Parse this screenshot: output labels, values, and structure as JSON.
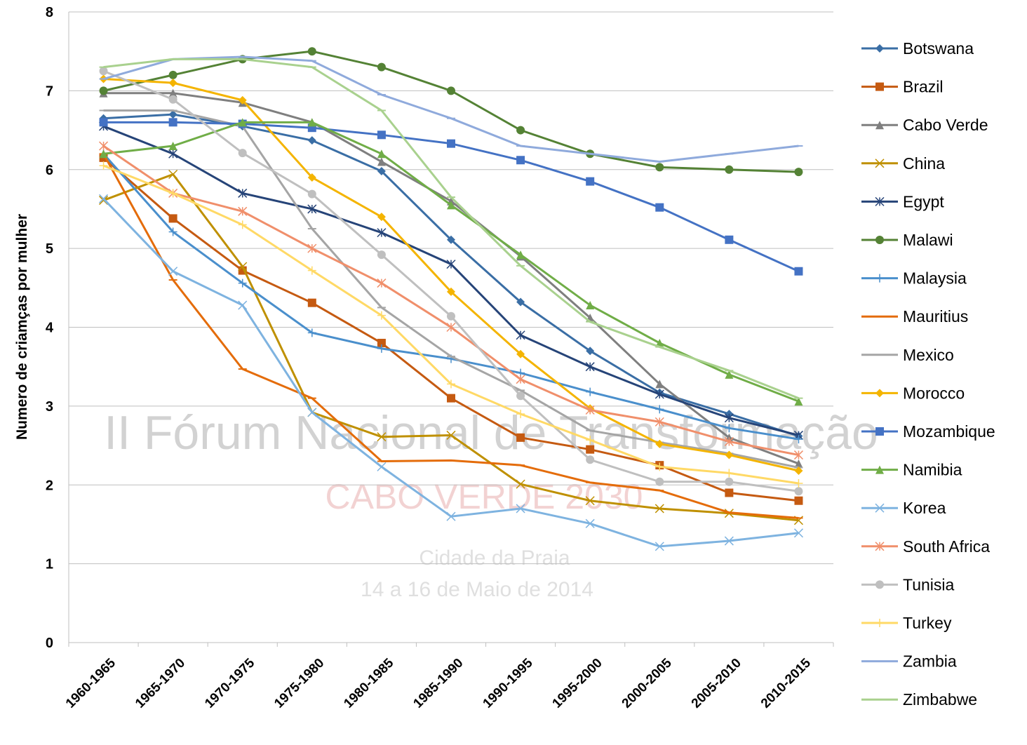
{
  "chart_data": {
    "type": "line",
    "y_label": "Numero de criamças por mulher",
    "categories": [
      "1960-1965",
      "1965-1970",
      "1970-1975",
      "1975-1980",
      "1980-1985",
      "1985-1990",
      "1990-1995",
      "1995-2000",
      "2000-2005",
      "2005-2010",
      "2010-2015"
    ],
    "ylim": [
      0,
      8
    ],
    "yticks": [
      0,
      1,
      2,
      3,
      4,
      5,
      6,
      7,
      8
    ],
    "grid": true,
    "legend": "right",
    "annotations": [
      "II Fórum Nacional de Transformação",
      "CABO VERDE 2030",
      "Cidade da Praia",
      "14 a 16 de Maio de 2014"
    ],
    "series": [
      {
        "name": "Botswana",
        "color": "#3a6ea5",
        "marker": "diamond",
        "values": [
          6.65,
          6.7,
          6.55,
          6.37,
          5.98,
          5.11,
          4.32,
          3.7,
          3.17,
          2.9,
          2.62
        ]
      },
      {
        "name": "Brazil",
        "color": "#c55a11",
        "marker": "square",
        "values": [
          6.15,
          5.38,
          4.72,
          4.31,
          3.8,
          3.1,
          2.6,
          2.45,
          2.25,
          1.9,
          1.8
        ]
      },
      {
        "name": "Cabo Verde",
        "color": "#7f7f7f",
        "marker": "triangle",
        "values": [
          6.97,
          6.97,
          6.85,
          6.6,
          6.1,
          5.6,
          4.9,
          4.12,
          3.28,
          2.6,
          2.27
        ]
      },
      {
        "name": "China",
        "color": "#bf9000",
        "marker": "x",
        "values": [
          5.61,
          5.94,
          4.77,
          2.92,
          2.61,
          2.63,
          2.01,
          1.8,
          1.7,
          1.64,
          1.55
        ]
      },
      {
        "name": "Egypt",
        "color": "#264478",
        "marker": "star",
        "values": [
          6.55,
          6.2,
          5.7,
          5.5,
          5.2,
          4.8,
          3.9,
          3.5,
          3.15,
          2.85,
          2.63
        ]
      },
      {
        "name": "Malawi",
        "color": "#548235",
        "marker": "circle",
        "values": [
          7.0,
          7.2,
          7.4,
          7.5,
          7.3,
          7.0,
          6.5,
          6.2,
          6.03,
          6.0,
          5.97
        ]
      },
      {
        "name": "Malaysia",
        "color": "#4a8fcc",
        "marker": "plus",
        "values": [
          6.2,
          5.21,
          4.56,
          3.93,
          3.73,
          3.6,
          3.42,
          3.18,
          2.96,
          2.72,
          2.58
        ]
      },
      {
        "name": "Mauritius",
        "color": "#e46c0a",
        "marker": "dash",
        "values": [
          6.2,
          4.6,
          3.47,
          3.1,
          2.3,
          2.31,
          2.25,
          2.03,
          1.93,
          1.65,
          1.58
        ]
      },
      {
        "name": "Mexico",
        "color": "#a5a5a5",
        "marker": "dash",
        "values": [
          6.75,
          6.75,
          6.55,
          5.25,
          4.25,
          3.63,
          3.2,
          2.69,
          2.54,
          2.4,
          2.22
        ]
      },
      {
        "name": "Morocco",
        "color": "#f4b400",
        "marker": "diamond",
        "values": [
          7.15,
          7.1,
          6.88,
          5.9,
          5.4,
          4.45,
          3.66,
          2.97,
          2.52,
          2.38,
          2.18
        ]
      },
      {
        "name": "Mozambique",
        "color": "#4472c4",
        "marker": "square",
        "values": [
          6.6,
          6.6,
          6.58,
          6.53,
          6.44,
          6.33,
          6.12,
          5.85,
          5.52,
          5.11,
          4.71
        ]
      },
      {
        "name": "Namibia",
        "color": "#70ad47",
        "marker": "triangle",
        "values": [
          6.2,
          6.3,
          6.6,
          6.6,
          6.2,
          5.55,
          4.92,
          4.28,
          3.8,
          3.4,
          3.06
        ]
      },
      {
        "name": "Korea",
        "color": "#7eb3e0",
        "marker": "x",
        "values": [
          5.63,
          4.71,
          4.28,
          2.92,
          2.23,
          1.6,
          1.7,
          1.51,
          1.22,
          1.29,
          1.39
        ]
      },
      {
        "name": "South Africa",
        "color": "#f08f6b",
        "marker": "star",
        "values": [
          6.3,
          5.7,
          5.47,
          5.0,
          4.56,
          4.0,
          3.34,
          2.95,
          2.8,
          2.55,
          2.38
        ]
      },
      {
        "name": "Tunisia",
        "color": "#bfbfbf",
        "marker": "circle",
        "values": [
          7.25,
          6.89,
          6.21,
          5.69,
          4.92,
          4.14,
          3.13,
          2.32,
          2.04,
          2.04,
          1.92
        ]
      },
      {
        "name": "Turkey",
        "color": "#ffd966",
        "marker": "plus",
        "values": [
          6.05,
          5.7,
          5.3,
          4.72,
          4.15,
          3.28,
          2.9,
          2.57,
          2.23,
          2.15,
          2.02
        ]
      },
      {
        "name": "Zambia",
        "color": "#8faadc",
        "marker": "dash",
        "values": [
          7.15,
          7.4,
          7.43,
          7.38,
          6.95,
          6.65,
          6.3,
          6.2,
          6.1,
          6.2,
          6.3
        ]
      },
      {
        "name": "Zimbabwe",
        "color": "#a9d18e",
        "marker": "dash",
        "values": [
          7.3,
          7.4,
          7.4,
          7.3,
          6.75,
          5.65,
          4.78,
          4.07,
          3.75,
          3.45,
          3.1
        ]
      }
    ]
  }
}
